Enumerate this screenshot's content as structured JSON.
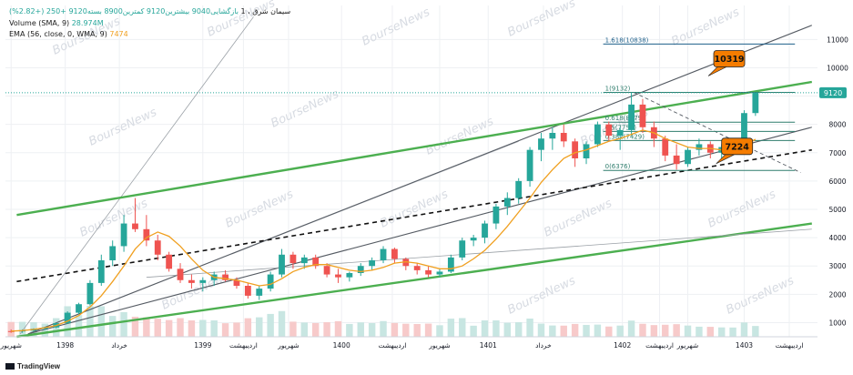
{
  "header": {
    "symbol": "سیمان شرق ، 1",
    "open": "بازگشایی9040",
    "high": "بیشترین9120",
    "low": "کمترین8900",
    "close": "بسته9120",
    "change": "+250 (+2.82%)",
    "volume_label": "Volume (SMA, 9)",
    "volume_value": "28.974M",
    "ema_label": "EMA (56, close, 0, WMA, 9)",
    "ema_value": "7474"
  },
  "brand": "TradingView",
  "watermark": "BourseNews",
  "colors": {
    "up": "#26a69a",
    "down": "#ef5350",
    "ema": "#f0a020",
    "channel": "#4caf50",
    "fib": "#1e5f8a",
    "callout": "#f57c00"
  },
  "chart_data": {
    "type": "candlestick",
    "y_axis": {
      "ticks": [
        1000,
        2000,
        3000,
        4000,
        5000,
        6000,
        7000,
        8000,
        9000,
        10000,
        11000
      ],
      "ylim": [
        500,
        12200
      ]
    },
    "x_axis": {
      "labels": [
        {
          "t": 0.0,
          "text": "شهریور"
        },
        {
          "t": 4.8,
          "text": "1398"
        },
        {
          "t": 9.6,
          "text": "خرداد"
        },
        {
          "t": 17.0,
          "text": "1399"
        },
        {
          "t": 20.6,
          "text": "اردیبهشت"
        },
        {
          "t": 24.6,
          "text": "شهریور"
        },
        {
          "t": 29.3,
          "text": "1400"
        },
        {
          "t": 33.8,
          "text": "اردیبهشت"
        },
        {
          "t": 38.0,
          "text": "شهریور"
        },
        {
          "t": 42.3,
          "text": "1401"
        },
        {
          "t": 47.2,
          "text": "خرداد"
        },
        {
          "t": 54.2,
          "text": "1402"
        },
        {
          "t": 57.5,
          "text": "اردیبهشت"
        },
        {
          "t": 60.0,
          "text": "شهریور"
        },
        {
          "t": 65.0,
          "text": "1403"
        },
        {
          "t": 69.0,
          "text": "اردیبهشت"
        }
      ],
      "range": [
        -0.5,
        71.5
      ]
    },
    "last_price": 9120,
    "callouts": [
      {
        "label": "10319",
        "price": 10319
      },
      {
        "label": "7224",
        "price": 7224
      }
    ],
    "fib_levels": [
      {
        "label": "1.618(10838)",
        "price": 10838
      },
      {
        "label": "1(9132)",
        "price": 9132
      },
      {
        "label": "0.618(8079)",
        "price": 8079
      },
      {
        "label": "0.5(7754)",
        "price": 7754
      },
      {
        "label": "0.382(7429)",
        "price": 7429
      },
      {
        "label": "0(6376)",
        "price": 6376
      }
    ],
    "ohlc": [
      [
        700,
        760,
        640,
        690
      ],
      [
        690,
        760,
        640,
        720
      ],
      [
        720,
        800,
        680,
        780
      ],
      [
        780,
        850,
        740,
        830
      ],
      [
        830,
        1000,
        800,
        980
      ],
      [
        980,
        1400,
        950,
        1350
      ],
      [
        1350,
        1700,
        1300,
        1650
      ],
      [
        1650,
        2500,
        1600,
        2400
      ],
      [
        2400,
        3400,
        2300,
        3200
      ],
      [
        3200,
        3900,
        3000,
        3700
      ],
      [
        3700,
        4800,
        3500,
        4500
      ],
      [
        4500,
        5400,
        4200,
        4300
      ],
      [
        4300,
        4800,
        3700,
        3900
      ],
      [
        3900,
        4100,
        3200,
        3400
      ],
      [
        3400,
        3500,
        2800,
        2900
      ],
      [
        2900,
        3100,
        2400,
        2500
      ],
      [
        2500,
        2700,
        2200,
        2400
      ],
      [
        2400,
        2600,
        2100,
        2500
      ],
      [
        2500,
        2800,
        2300,
        2700
      ],
      [
        2700,
        2850,
        2450,
        2500
      ],
      [
        2500,
        2600,
        2200,
        2300
      ],
      [
        2300,
        2400,
        1850,
        1950
      ],
      [
        1950,
        2300,
        1800,
        2200
      ],
      [
        2200,
        2800,
        2100,
        2700
      ],
      [
        2700,
        3600,
        2600,
        3400
      ],
      [
        3400,
        3500,
        2900,
        3100
      ],
      [
        3100,
        3400,
        2900,
        3300
      ],
      [
        3300,
        3400,
        2900,
        3000
      ],
      [
        3000,
        3100,
        2600,
        2700
      ],
      [
        2700,
        2900,
        2400,
        2600
      ],
      [
        2600,
        2800,
        2450,
        2750
      ],
      [
        2750,
        3100,
        2650,
        3000
      ],
      [
        3000,
        3300,
        2850,
        3200
      ],
      [
        3200,
        3700,
        3100,
        3600
      ],
      [
        3600,
        3650,
        3100,
        3250
      ],
      [
        3250,
        3300,
        2850,
        3000
      ],
      [
        3000,
        3100,
        2700,
        2850
      ],
      [
        2850,
        3000,
        2600,
        2700
      ],
      [
        2700,
        2900,
        2600,
        2800
      ],
      [
        2800,
        3400,
        2750,
        3300
      ],
      [
        3300,
        4000,
        3200,
        3900
      ],
      [
        3900,
        4100,
        3700,
        4000
      ],
      [
        4000,
        4600,
        3800,
        4500
      ],
      [
        4500,
        5200,
        4300,
        5100
      ],
      [
        5100,
        5600,
        4800,
        5400
      ],
      [
        5400,
        6100,
        5200,
        6000
      ],
      [
        6000,
        7200,
        5800,
        7100
      ],
      [
        7100,
        7700,
        6700,
        7500
      ],
      [
        7500,
        7900,
        7100,
        7700
      ],
      [
        7700,
        8000,
        7200,
        7400
      ],
      [
        7400,
        7500,
        6500,
        6800
      ],
      [
        6800,
        7400,
        6600,
        7300
      ],
      [
        7300,
        8100,
        7200,
        8000
      ],
      [
        8000,
        8100,
        7400,
        7600
      ],
      [
        7600,
        7900,
        7100,
        7800
      ],
      [
        7800,
        9132,
        7600,
        8700
      ],
      [
        8700,
        8900,
        7700,
        7900
      ],
      [
        7900,
        8100,
        7200,
        7500
      ],
      [
        7500,
        7600,
        6700,
        6900
      ],
      [
        6900,
        7300,
        6400,
        6600
      ],
      [
        6600,
        7200,
        6500,
        7100
      ],
      [
        7100,
        7500,
        6900,
        7300
      ],
      [
        7300,
        7400,
        6800,
        7000
      ],
      [
        7000,
        7300,
        6800,
        7200
      ],
      [
        7200,
        7500,
        7000,
        7400
      ],
      [
        7400,
        8500,
        7300,
        8400
      ],
      [
        8400,
        9120,
        8300,
        9120
      ]
    ],
    "ema": [
      700,
      720,
      760,
      820,
      900,
      1050,
      1250,
      1550,
      1950,
      2450,
      3000,
      3600,
      4000,
      4200,
      4050,
      3700,
      3250,
      2850,
      2600,
      2550,
      2500,
      2400,
      2300,
      2350,
      2550,
      2800,
      2950,
      3050,
      3050,
      2950,
      2850,
      2800,
      2850,
      2950,
      3100,
      3150,
      3100,
      3000,
      2900,
      2900,
      3000,
      3250,
      3550,
      3950,
      4400,
      4900,
      5400,
      5950,
      6400,
      6800,
      7000,
      7100,
      7250,
      7400,
      7500,
      7650,
      7800,
      7700,
      7500,
      7350,
      7200,
      7150,
      7150,
      7100,
      7150,
      7250,
      7474
    ]
  }
}
